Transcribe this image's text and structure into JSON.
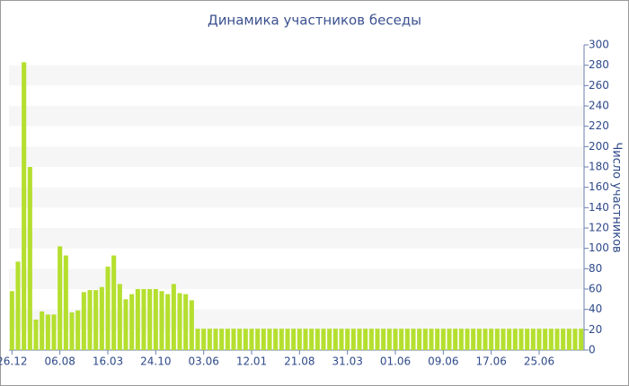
{
  "chart_data": {
    "type": "bar",
    "title": "Динамика участников беседы",
    "y_axis_label": "Число участников",
    "categories": [
      "26.12",
      null,
      null,
      null,
      null,
      null,
      null,
      null,
      "06.08",
      null,
      null,
      null,
      null,
      null,
      null,
      null,
      "16.03",
      null,
      null,
      null,
      null,
      null,
      null,
      null,
      "24.10",
      null,
      null,
      null,
      null,
      null,
      null,
      null,
      "03.06",
      null,
      null,
      null,
      null,
      null,
      null,
      null,
      "12.01",
      null,
      null,
      null,
      null,
      null,
      null,
      null,
      "21.08",
      null,
      null,
      null,
      null,
      null,
      null,
      null,
      "31.03",
      null,
      null,
      null,
      null,
      null,
      null,
      null,
      "01.06",
      null,
      null,
      null,
      null,
      null,
      null,
      null,
      "09.06",
      null,
      null,
      null,
      null,
      null,
      null,
      null,
      "17.06",
      null,
      null,
      null,
      null,
      null,
      null,
      null,
      "25.06",
      null,
      null,
      null,
      null,
      null,
      null,
      null
    ],
    "values": [
      58,
      87,
      283,
      180,
      30,
      38,
      35,
      35,
      102,
      93,
      37,
      39,
      57,
      59,
      59,
      62,
      82,
      93,
      65,
      50,
      55,
      60,
      60,
      60,
      60,
      58,
      55,
      65,
      56,
      55,
      49,
      21,
      21,
      21,
      21,
      21,
      21,
      21,
      21,
      21,
      21,
      21,
      21,
      21,
      21,
      21,
      21,
      21,
      21,
      21,
      21,
      21,
      21,
      21,
      21,
      21,
      21,
      21,
      21,
      21,
      21,
      21,
      21,
      21,
      21,
      21,
      21,
      21,
      21,
      21,
      21,
      21,
      21,
      21,
      21,
      21,
      21,
      21,
      21,
      21,
      21,
      21,
      21,
      21,
      21,
      21,
      21,
      21,
      21,
      21,
      21,
      21,
      21,
      21,
      21,
      21
    ],
    "color": "#b5df2f",
    "ylim": [
      0,
      300
    ],
    "yticks": [
      0,
      20,
      40,
      60,
      80,
      100,
      120,
      140,
      160,
      180,
      200,
      220,
      240,
      260,
      280,
      300
    ],
    "y_axis_side": "right",
    "grid": "bands"
  }
}
